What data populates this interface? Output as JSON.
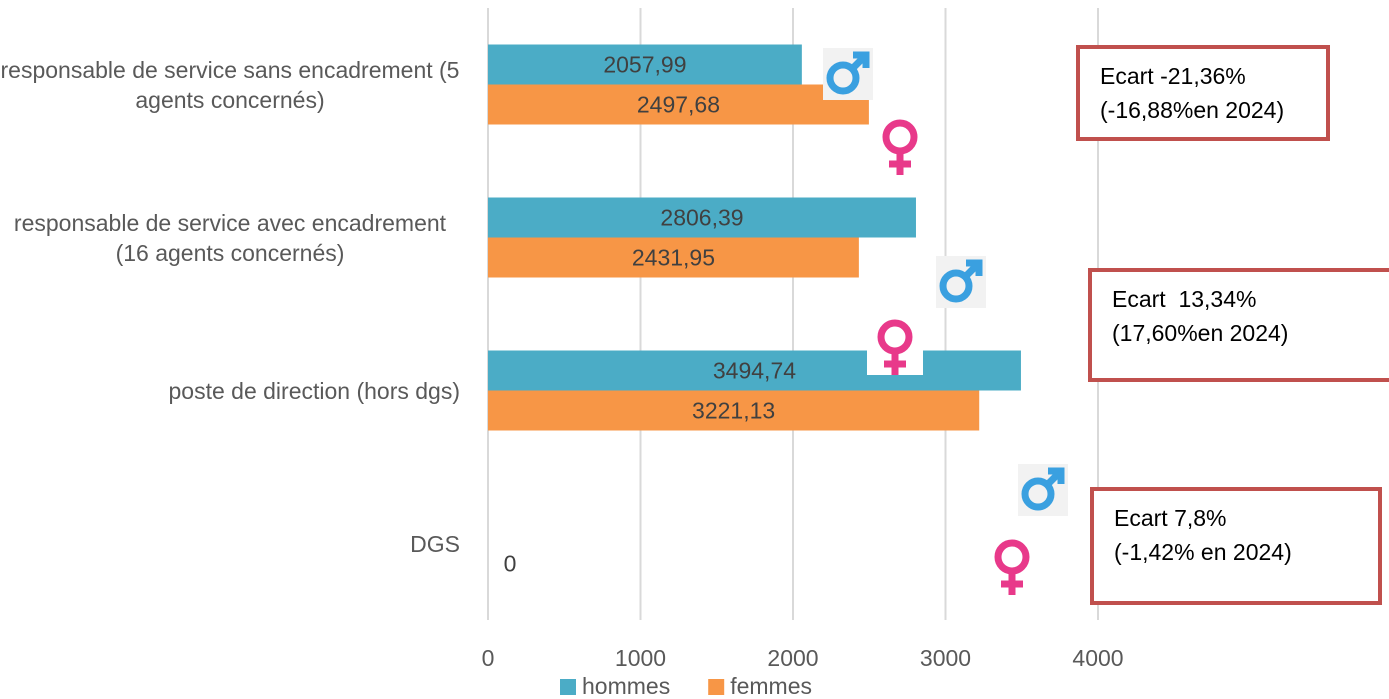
{
  "chart_data": {
    "type": "bar",
    "orientation": "horizontal",
    "categories": [
      "responsable de service sans encadrement (5 agents concernés)",
      "responsable de service avec encadrement (16 agents concernés)",
      "poste de direction (hors dgs)",
      "DGS"
    ],
    "series": [
      {
        "name": "hommes",
        "color": "#4bacc6",
        "values": [
          2057.99,
          2806.39,
          3494.74,
          null
        ],
        "value_labels": [
          "2057,99",
          "2806,39",
          "3494,74",
          null
        ]
      },
      {
        "name": "femmes",
        "color": "#f79646",
        "values": [
          2497.68,
          2431.95,
          3221.13,
          0
        ],
        "value_labels": [
          "2497,68",
          "2431,95",
          "3221,13",
          "0"
        ]
      }
    ],
    "xlim": [
      0,
      4000
    ],
    "xticks": [
      0,
      1000,
      2000,
      3000,
      4000
    ],
    "grid": true,
    "legend": "bottom",
    "annotations": [
      [
        "Ecart -21,36%",
        "(-16,88%en 2024)"
      ],
      [
        "Ecart  13,34%",
        "(17,60%en 2024)"
      ],
      [
        "Ecart 7,8%",
        "(-1,42% en 2024)"
      ]
    ]
  }
}
